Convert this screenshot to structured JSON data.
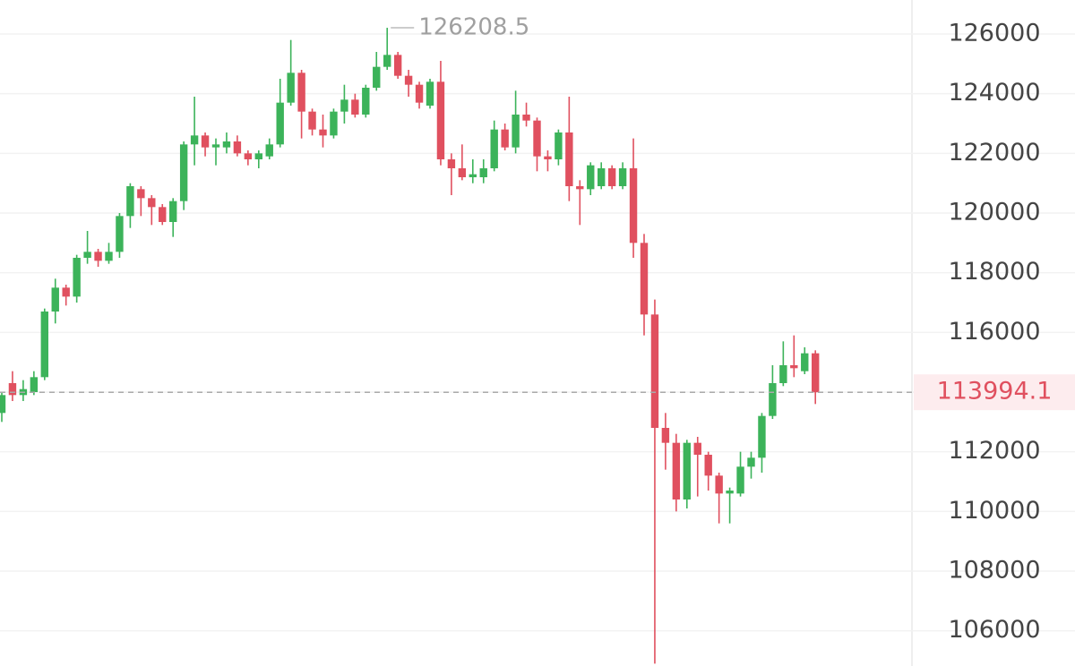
{
  "chart_data": {
    "type": "candlestick",
    "up_color": "#3cb35a",
    "down_color": "#e0505f",
    "open": [
      113300,
      114300,
      113900,
      114000,
      114500,
      116700,
      117500,
      117200,
      118500,
      118700,
      118400,
      118700,
      119900,
      120800,
      120500,
      120200,
      119700,
      120400,
      122300,
      122600,
      122200,
      122200,
      122400,
      122000,
      121800,
      121900,
      122300,
      123700,
      124700,
      123400,
      122800,
      122600,
      123400,
      123800,
      123300,
      124200,
      124900,
      125300,
      124600,
      124300,
      123600,
      124400,
      121800,
      121500,
      121200,
      121200,
      121500,
      122800,
      122200,
      123300,
      123100,
      121900,
      121800,
      122700,
      120900,
      120800,
      120900,
      121500,
      120900,
      121500,
      119000,
      116600,
      112800,
      112300,
      110400,
      112300,
      111900,
      111200,
      110600,
      110600,
      111500,
      111800,
      113200,
      114300,
      114900,
      114700,
      115300
    ],
    "high": [
      114000,
      114700,
      114400,
      114700,
      116800,
      117800,
      117600,
      118600,
      119400,
      118800,
      119000,
      120000,
      121000,
      120900,
      120600,
      120300,
      120500,
      122400,
      123900,
      122700,
      122500,
      122700,
      122600,
      122100,
      122100,
      122500,
      124500,
      125800,
      124800,
      123500,
      123300,
      123500,
      124300,
      124000,
      124300,
      125400,
      126208.5,
      125400,
      124800,
      124400,
      124500,
      125100,
      122000,
      122300,
      121800,
      121800,
      123100,
      123000,
      124100,
      123700,
      123200,
      122100,
      122800,
      123900,
      121100,
      121700,
      121700,
      121600,
      121700,
      122500,
      119300,
      117100,
      113300,
      112600,
      112400,
      112500,
      112000,
      111300,
      110800,
      112000,
      112000,
      113300,
      114900,
      115700,
      115900,
      115500,
      115400
    ],
    "low": [
      113000,
      113700,
      113700,
      113900,
      114400,
      116300,
      116900,
      117000,
      118300,
      118200,
      118300,
      118500,
      119500,
      119900,
      119600,
      119600,
      119200,
      120100,
      121600,
      121900,
      121600,
      122000,
      121900,
      121600,
      121500,
      121800,
      122200,
      123600,
      122500,
      122600,
      122200,
      122500,
      123000,
      123200,
      123200,
      124100,
      124800,
      124500,
      123900,
      123500,
      123500,
      121600,
      120600,
      121100,
      121000,
      121000,
      121400,
      122100,
      122000,
      122900,
      121400,
      121400,
      121600,
      120400,
      119600,
      120600,
      120800,
      120800,
      120800,
      118500,
      115900,
      104900,
      111400,
      110000,
      110100,
      110500,
      110700,
      109600,
      109600,
      110500,
      111100,
      111300,
      113100,
      114200,
      114500,
      114600,
      113600
    ],
    "close": [
      113900,
      113900,
      114100,
      114500,
      116700,
      117500,
      117200,
      118500,
      118700,
      118400,
      118700,
      119900,
      120900,
      120500,
      120200,
      119700,
      120400,
      122300,
      122600,
      122200,
      122300,
      122400,
      122000,
      121800,
      122000,
      122300,
      123700,
      124700,
      123400,
      122800,
      122600,
      123400,
      123800,
      123300,
      124200,
      124900,
      125300,
      124600,
      124300,
      123700,
      124400,
      121800,
      121500,
      121200,
      121300,
      121500,
      122800,
      122200,
      123300,
      123100,
      121900,
      121800,
      122700,
      120900,
      120800,
      121600,
      121500,
      120900,
      121500,
      119000,
      116600,
      112800,
      112300,
      110400,
      112300,
      111900,
      111200,
      110600,
      110700,
      111500,
      111800,
      113200,
      114300,
      114900,
      114800,
      115300,
      113994.1
    ],
    "ylim": [
      104820,
      127140
    ],
    "yticks": [
      106000,
      108000,
      110000,
      112000,
      114000,
      116000,
      118000,
      120000,
      122000,
      124000,
      126000
    ],
    "grid": true
  }
}
